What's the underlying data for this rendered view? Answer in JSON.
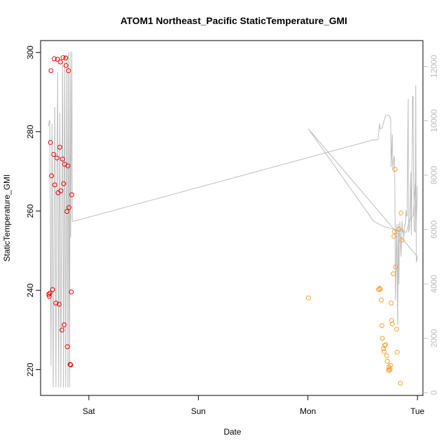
{
  "chart_data": {
    "type": "scatter",
    "title": "ATOM1 Northeast_Pacific StaticTemperature_GMI",
    "xlabel": "Date",
    "ylabel": "StaticTemperature_GMI",
    "x_unit": "days (Fri 00:00 = 0)",
    "x_ticks": [
      {
        "label": "Sat",
        "value": 1
      },
      {
        "label": "Sun",
        "value": 2
      },
      {
        "label": "Mon",
        "value": 3
      },
      {
        "label": "Tue",
        "value": 4
      }
    ],
    "xlim": [
      0.56,
      4.05
    ],
    "ylim": [
      213.5,
      303
    ],
    "y_ticks": [
      220,
      240,
      260,
      280,
      300
    ],
    "y2lim": [
      -100,
      12950
    ],
    "y2_ticks": [
      0,
      2000,
      4000,
      6000,
      8000,
      10000,
      12000
    ],
    "colors": {
      "series_red": "#ee0000",
      "series_orange": "#f5a02c",
      "altitude_line": "#bbbbbb",
      "axis": "#000000",
      "axis_right": "#bbbbbb"
    },
    "series": [
      {
        "color": "#ee0000",
        "points": [
          [
            0.635,
            239.0
          ],
          [
            0.64,
            238.5
          ],
          [
            0.645,
            239.3
          ],
          [
            0.65,
            277.3
          ],
          [
            0.655,
            295.4
          ],
          [
            0.66,
            268.9
          ],
          [
            0.67,
            240.2
          ],
          [
            0.68,
            274.3
          ],
          [
            0.685,
            298.4
          ],
          [
            0.69,
            266.6
          ],
          [
            0.7,
            236.8
          ],
          [
            0.71,
            273.4
          ],
          [
            0.715,
            298.3
          ],
          [
            0.72,
            264.6
          ],
          [
            0.73,
            236.5
          ],
          [
            0.735,
            276.1
          ],
          [
            0.74,
            297.6
          ],
          [
            0.745,
            265.1
          ],
          [
            0.755,
            230.0
          ],
          [
            0.76,
            273.1
          ],
          [
            0.765,
            298.7
          ],
          [
            0.77,
            266.9
          ],
          [
            0.775,
            231.3
          ],
          [
            0.78,
            271.8
          ],
          [
            0.79,
            298.6
          ],
          [
            0.792,
            296.7
          ],
          [
            0.8,
            259.9
          ],
          [
            0.805,
            225.8
          ],
          [
            0.81,
            271.4
          ],
          [
            0.815,
            295.4
          ],
          [
            0.82,
            260.9
          ],
          [
            0.83,
            221.3
          ],
          [
            0.835,
            221.2
          ],
          [
            0.84,
            239.6
          ],
          [
            0.845,
            264.1
          ]
        ]
      },
      {
        "color": "#f5a02c",
        "points": [
          [
            3.005,
            238.1
          ],
          [
            3.645,
            240.2
          ],
          [
            3.655,
            240.5
          ],
          [
            3.66,
            240.3
          ],
          [
            3.67,
            237.6
          ],
          [
            3.675,
            231.1
          ],
          [
            3.68,
            227.9
          ],
          [
            3.69,
            225.3
          ],
          [
            3.695,
            224.6
          ],
          [
            3.7,
            226.1
          ],
          [
            3.71,
            226.3
          ],
          [
            3.72,
            223.5
          ],
          [
            3.725,
            222.1
          ],
          [
            3.735,
            219.9
          ],
          [
            3.74,
            220.7
          ],
          [
            3.745,
            219.9
          ],
          [
            3.75,
            220.3
          ],
          [
            3.755,
            221.1
          ],
          [
            3.76,
            236.8
          ],
          [
            3.765,
            232.4
          ],
          [
            3.77,
            231.5
          ],
          [
            3.78,
            244.2
          ],
          [
            3.785,
            253.6
          ],
          [
            3.79,
            254.8
          ],
          [
            3.795,
            270.5
          ],
          [
            3.8,
            245.9
          ],
          [
            3.81,
            230.2
          ],
          [
            3.815,
            224.4
          ],
          [
            3.83,
            255.4
          ],
          [
            3.845,
            216.6
          ],
          [
            3.85,
            259.5
          ],
          [
            3.86,
            252.7
          ]
        ]
      },
      {
        "color": "#bbbbbb",
        "axis": "right",
        "line": [
          [
            0.63,
            9800
          ],
          [
            0.64,
            10000
          ],
          [
            0.645,
            10000
          ],
          [
            0.655,
            1000
          ],
          [
            0.665,
            9900
          ],
          [
            0.675,
            200
          ],
          [
            0.69,
            10500
          ],
          [
            0.7,
            200
          ],
          [
            0.715,
            11800
          ],
          [
            0.725,
            200
          ],
          [
            0.735,
            10300
          ],
          [
            0.745,
            200
          ],
          [
            0.76,
            12200
          ],
          [
            0.77,
            200
          ],
          [
            0.78,
            12400
          ],
          [
            0.79,
            200
          ],
          [
            0.8,
            12400
          ],
          [
            0.81,
            200
          ],
          [
            0.815,
            12500
          ],
          [
            0.825,
            200
          ],
          [
            0.83,
            12550
          ],
          [
            0.835,
            5700
          ],
          [
            0.845,
            12550
          ],
          [
            0.85,
            6300
          ],
          [
            0.86,
            6300
          ],
          [
            3.6,
            9300
          ],
          [
            3.64,
            9300
          ],
          [
            3.645,
            9500
          ],
          [
            3.655,
            9900
          ],
          [
            3.66,
            9700
          ],
          [
            3.68,
            9750
          ],
          [
            3.695,
            10000
          ],
          [
            3.71,
            10200
          ],
          [
            3.74,
            10200
          ],
          [
            3.755,
            10100
          ],
          [
            3.76,
            8300
          ],
          [
            3.77,
            9500
          ],
          [
            3.775,
            8200
          ],
          [
            3.78,
            8500
          ],
          [
            3.79,
            8700
          ],
          [
            3.795,
            6500
          ],
          [
            3.8,
            3400
          ],
          [
            3.81,
            6200
          ],
          [
            3.82,
            2500
          ],
          [
            3.825,
            6200
          ],
          [
            3.83,
            4000
          ],
          [
            3.835,
            5600
          ],
          [
            3.84,
            6300
          ],
          [
            3.845,
            5600
          ],
          [
            3.85,
            5000
          ],
          [
            3.86,
            6300
          ],
          [
            3.865,
            5900
          ],
          [
            3.87,
            6000
          ],
          [
            3.875,
            5700
          ],
          [
            3.88,
            5900
          ],
          [
            3.885,
            6200
          ],
          [
            3.89,
            6200
          ],
          [
            3.895,
            6700
          ],
          [
            3.9,
            6500
          ],
          [
            3.905,
            6500
          ],
          [
            3.91,
            8600
          ],
          [
            3.915,
            10800
          ],
          [
            3.92,
            5900
          ],
          [
            3.93,
            6100
          ],
          [
            3.94,
            8100
          ],
          [
            3.945,
            5800
          ],
          [
            3.955,
            10900
          ],
          [
            3.96,
            10900
          ],
          [
            3.97,
            6000
          ],
          [
            3.98,
            5900
          ],
          [
            3.985,
            11300
          ],
          [
            3.99,
            4800
          ],
          [
            4.0,
            5000
          ],
          [
            3.005,
            9700
          ],
          [
            3.53,
            6700
          ],
          [
            3.55,
            6600
          ],
          [
            3.6,
            6300
          ],
          [
            3.7,
            6100
          ],
          [
            3.9,
            5900
          ],
          [
            3.93,
            6400
          ],
          [
            3.96,
            6500
          ],
          [
            3.98,
            7700
          ],
          [
            3.99,
            6300
          ],
          [
            4.0,
            7600
          ]
        ]
      }
    ]
  }
}
